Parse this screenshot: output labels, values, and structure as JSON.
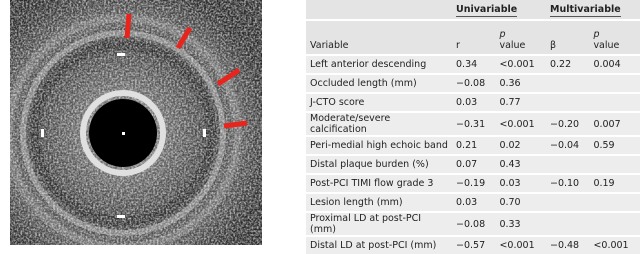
{
  "table": {
    "groups": [
      "Univariable",
      "Multivariable"
    ],
    "columns": [
      "Variable",
      "r",
      {
        "symbol": "p",
        "text": "value"
      },
      "β",
      {
        "symbol": "p",
        "text": "value"
      }
    ],
    "rows": [
      [
        "Left anterior descending",
        "0.34",
        "<0.001",
        "0.22",
        "0.004"
      ],
      [
        "Occluded length (mm)",
        "−0.08",
        "0.36",
        null,
        null
      ],
      [
        "J-CTO score",
        "0.03",
        "0.77",
        null,
        null
      ],
      [
        "Moderate/severe calcification",
        "−0.31",
        "<0.001",
        "−0.20",
        "0.007"
      ],
      [
        "Peri-medial high echoic band",
        "0.21",
        "0.02",
        "−0.04",
        "0.59"
      ],
      [
        "Distal plaque burden (%)",
        "0.07",
        "0.43",
        null,
        null
      ],
      [
        "Post-PCI TIMI flow grade 3",
        "−0.19",
        "0.03",
        "−0.10",
        "0.19"
      ],
      [
        "Lesion length (mm)",
        "0.03",
        "0.70",
        null,
        null
      ],
      [
        "Proximal LD at post-PCI (mm)",
        "−0.08",
        "0.33",
        null,
        null
      ],
      [
        "Distal LD at post-PCI (mm)",
        "−0.57",
        "<0.001",
        "−0.48",
        "<0.001"
      ]
    ]
  }
}
